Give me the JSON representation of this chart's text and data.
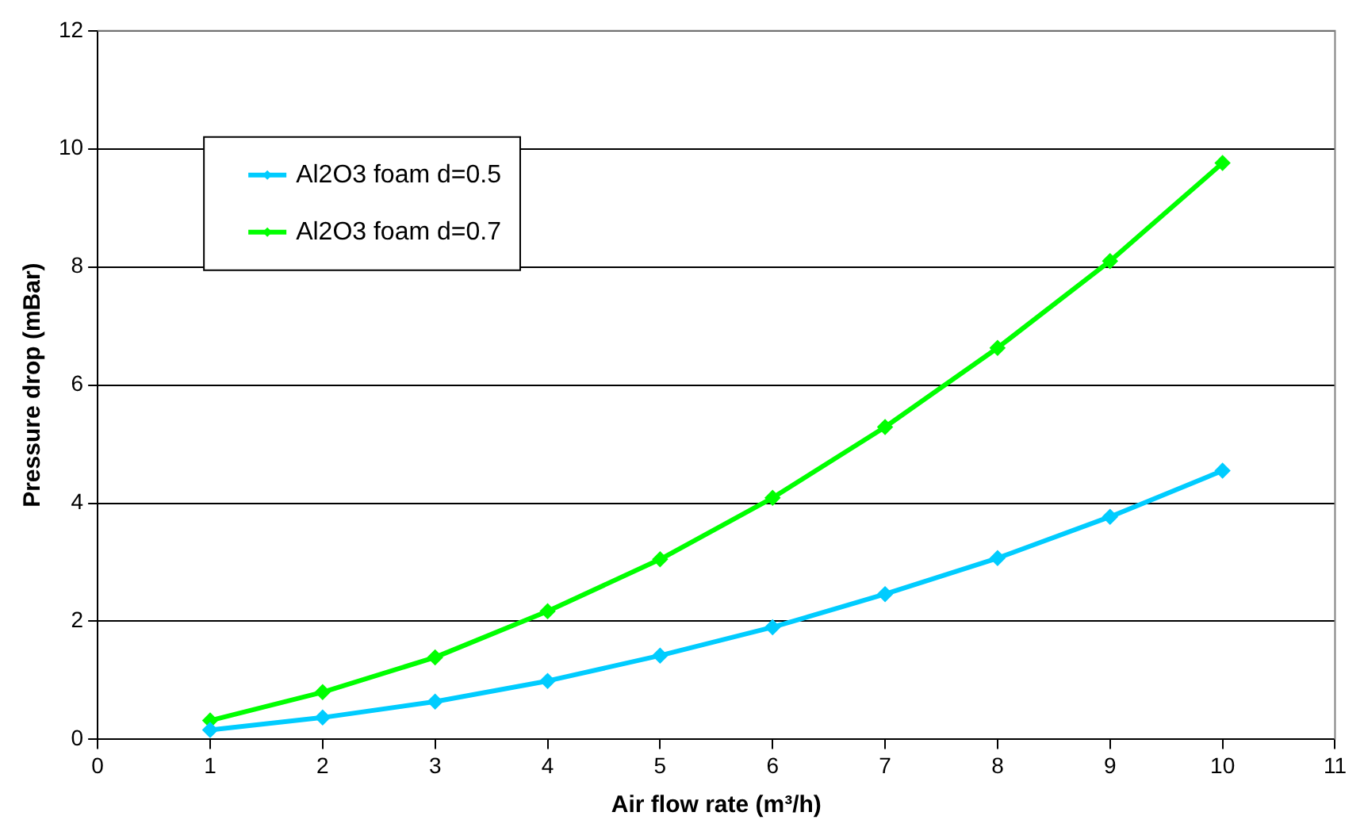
{
  "chart_data": {
    "type": "line",
    "xlabel": "Air flow rate (m³/h)",
    "ylabel": "Pressure drop (mBar)",
    "x": [
      1,
      2,
      3,
      4,
      5,
      6,
      7,
      8,
      9,
      10
    ],
    "series": [
      {
        "name": "Al2O3 foam d=0.5",
        "color": "#00ccff",
        "values": [
          0.16,
          0.37,
          0.64,
          0.99,
          1.42,
          1.9,
          2.46,
          3.07,
          3.77,
          4.55
        ]
      },
      {
        "name": "Al2O3 foam d=0.7",
        "color": "#00ff00",
        "values": [
          0.32,
          0.8,
          1.39,
          2.17,
          3.05,
          4.09,
          5.29,
          6.63,
          8.1,
          9.76
        ]
      }
    ],
    "xlim": [
      0,
      11
    ],
    "xticks": [
      0,
      1,
      2,
      3,
      4,
      5,
      6,
      7,
      8,
      9,
      10,
      11
    ],
    "ylim": [
      0,
      12
    ],
    "yticks": [
      0,
      2,
      4,
      6,
      8,
      10,
      12
    ],
    "grid": "y",
    "legend": "top left",
    "marker": "diamond",
    "line_style": "solid"
  }
}
